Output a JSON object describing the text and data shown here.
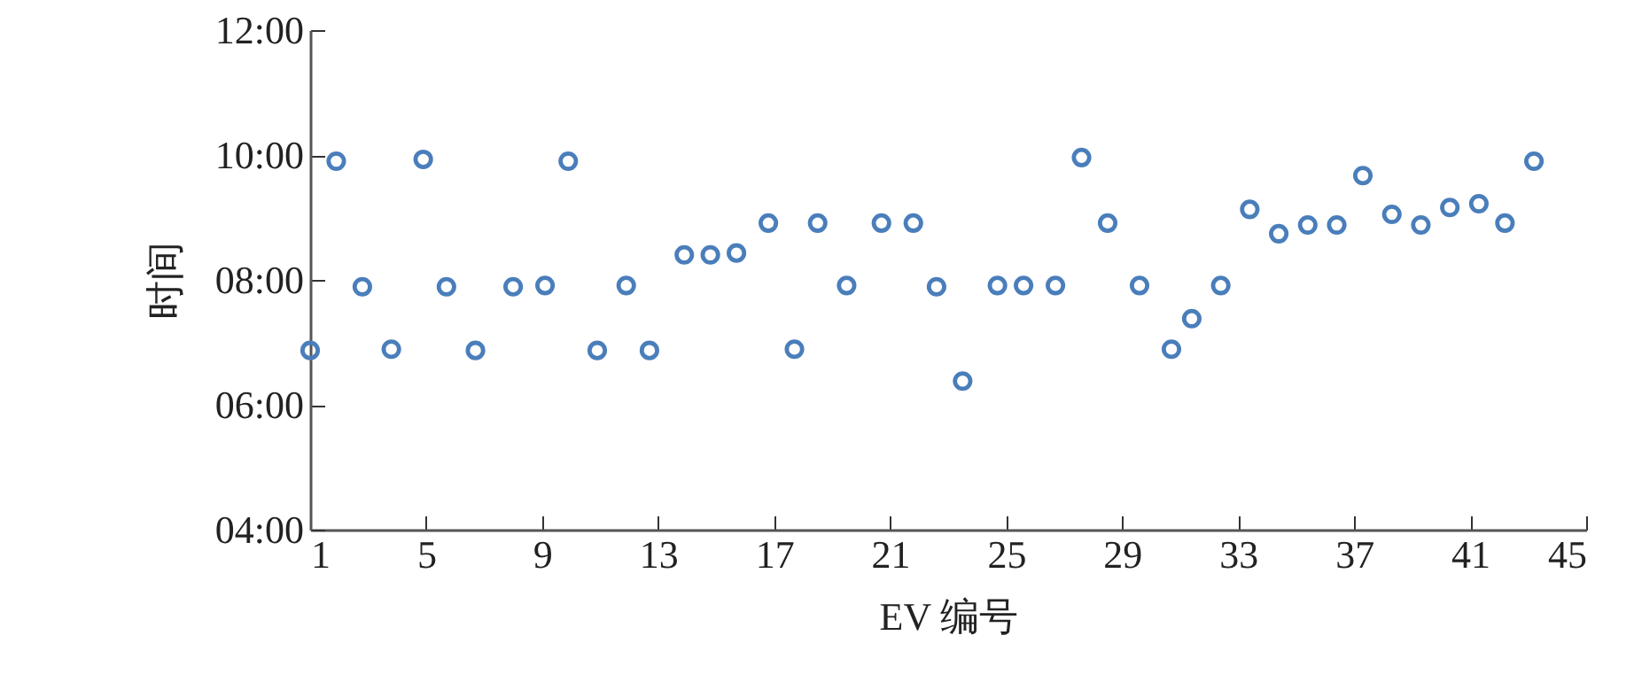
{
  "chart_data": {
    "type": "scatter",
    "xlabel": "EV 编号",
    "ylabel": "时间",
    "x": [
      1.0,
      1.9,
      2.8,
      3.8,
      4.9,
      5.7,
      6.7,
      8.0,
      9.1,
      9.9,
      10.9,
      11.9,
      12.7,
      13.9,
      14.8,
      15.7,
      16.8,
      17.7,
      18.5,
      19.5,
      20.7,
      21.8,
      22.6,
      23.5,
      24.7,
      25.6,
      26.7,
      27.6,
      28.5,
      29.6,
      30.7,
      31.4,
      32.4,
      33.4,
      34.4,
      35.4,
      36.4,
      37.3,
      38.3,
      39.3,
      40.3,
      41.3,
      42.2,
      43.2
    ],
    "series": [
      {
        "color": "#4a7ebb",
        "values": [
          6.87,
          9.9,
          7.89,
          6.89,
          9.93,
          7.89,
          6.87,
          7.89,
          7.91,
          9.9,
          6.87,
          7.91,
          6.87,
          8.4,
          8.4,
          8.43,
          8.91,
          6.89,
          8.91,
          7.91,
          8.91,
          8.91,
          7.89,
          6.38,
          7.91,
          7.91,
          7.91,
          9.96,
          8.91,
          7.91,
          6.89,
          7.38,
          7.91,
          9.13,
          8.74,
          8.88,
          8.88,
          9.67,
          9.05,
          8.88,
          9.16,
          9.22,
          8.91,
          9.9
        ]
      }
    ],
    "xlim": [
      1,
      45
    ],
    "xticks": [
      1,
      5,
      9,
      13,
      17,
      21,
      25,
      29,
      33,
      37,
      41,
      45
    ],
    "ylim": [
      4,
      12
    ],
    "yticks": [
      {
        "value": 4,
        "label": "04:00"
      },
      {
        "value": 6,
        "label": "06:00"
      },
      {
        "value": 8,
        "label": "08:00"
      },
      {
        "value": 10,
        "label": "10:00"
      },
      {
        "value": 12,
        "label": "12:00"
      }
    ],
    "marker": "circle",
    "grid": false
  }
}
